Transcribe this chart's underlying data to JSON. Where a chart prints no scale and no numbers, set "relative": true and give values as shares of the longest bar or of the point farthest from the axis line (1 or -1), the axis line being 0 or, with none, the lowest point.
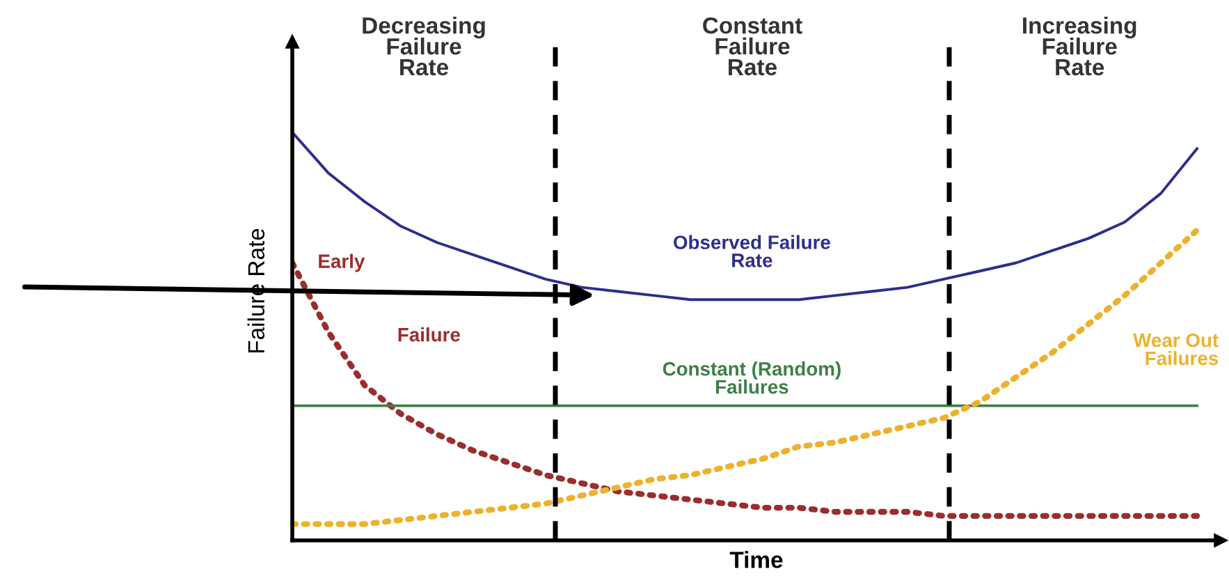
{
  "chart_data": {
    "type": "line",
    "relative": true,
    "xlabel": "Time",
    "ylabel": "Failure Rate",
    "categories": [
      null,
      null,
      null,
      null,
      null,
      null,
      null,
      null,
      null,
      null,
      null,
      null,
      null,
      null,
      null,
      null,
      null,
      null,
      null,
      null,
      null,
      null,
      null,
      null,
      null,
      null
    ],
    "series": [
      {
        "name": "Observed Failure\nRate",
        "color": "#2e2e8c",
        "line_style": "solid",
        "values": [
          1.0,
          0.9,
          0.83,
          0.77,
          0.73,
          0.7,
          0.67,
          0.64,
          0.62,
          0.61,
          0.6,
          0.59,
          0.59,
          0.59,
          0.59,
          0.6,
          0.61,
          0.62,
          0.64,
          0.66,
          0.68,
          0.71,
          0.74,
          0.78,
          0.85,
          0.96
        ]
      },
      {
        "name": "Early\nFailure",
        "color": "#9b2d2d",
        "line_style": "dotted",
        "values": [
          0.68,
          0.51,
          0.38,
          0.31,
          0.26,
          0.22,
          0.19,
          0.16,
          0.14,
          0.12,
          0.11,
          0.1,
          0.09,
          0.08,
          0.08,
          0.07,
          0.07,
          0.07,
          0.06,
          0.06,
          0.06,
          0.06,
          0.06,
          0.06,
          0.06,
          0.06
        ]
      },
      {
        "name": "Constant (Random)\nFailures",
        "color": "#3d7f47",
        "line_style": "solid",
        "values": [
          0.33,
          0.33,
          0.33,
          0.33,
          0.33,
          0.33,
          0.33,
          0.33,
          0.33,
          0.33,
          0.33,
          0.33,
          0.33,
          0.33,
          0.33,
          0.33,
          0.33,
          0.33,
          0.33,
          0.33,
          0.33,
          0.33,
          0.33,
          0.33,
          0.33,
          0.33
        ]
      },
      {
        "name": "Wear Out\nFailures",
        "color": "#eeb12e",
        "line_style": "dotted",
        "values": [
          0.04,
          0.04,
          0.04,
          0.05,
          0.06,
          0.07,
          0.08,
          0.09,
          0.11,
          0.13,
          0.15,
          0.16,
          0.18,
          0.2,
          0.23,
          0.24,
          0.26,
          0.28,
          0.3,
          0.34,
          0.4,
          0.46,
          0.53,
          0.6,
          0.68,
          0.76
        ]
      }
    ],
    "annotations": [
      "Decreasing\nFailure\nRate",
      "Constant\nFailure\nRate",
      "Increasing\nFailure\nRate"
    ],
    "grid": false,
    "legend": false,
    "marker": "none"
  }
}
